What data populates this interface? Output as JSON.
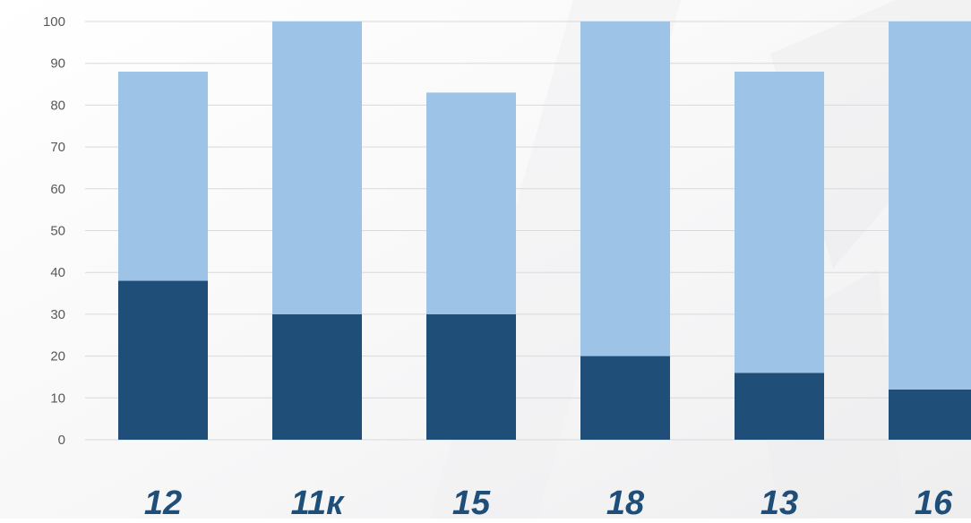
{
  "chart_data": {
    "type": "bar",
    "stacked": true,
    "categories": [
      "12",
      "11к",
      "15",
      "18",
      "13",
      "16"
    ],
    "series": [
      {
        "color": "#1f4e79",
        "values": [
          38,
          30,
          30,
          20,
          16,
          12
        ]
      },
      {
        "color": "#9dc3e6",
        "values": [
          50,
          70,
          53,
          80,
          72,
          88
        ]
      }
    ],
    "ylim": [
      0,
      100
    ],
    "yticks": [
      0,
      10,
      20,
      30,
      40,
      50,
      60,
      70,
      80,
      90,
      100
    ],
    "grid": true,
    "legend": "none",
    "title": "",
    "xlabel": "",
    "ylabel": ""
  }
}
